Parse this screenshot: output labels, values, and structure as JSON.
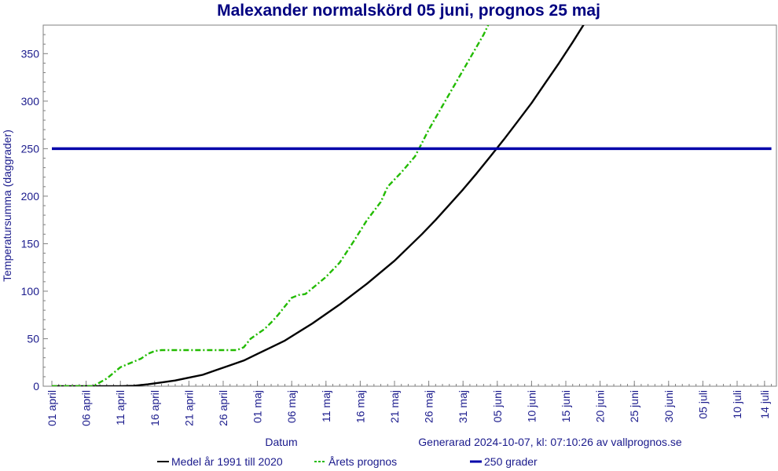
{
  "chart_data": {
    "type": "line",
    "title": "Malexander normalskörd 05 juni, prognos 25 maj",
    "xlabel": "Datum",
    "ylabel": "Temperatursumma (daggrader)",
    "generated_note": "Generarad 2024-10-07, kl: 07:10:26 av vallprognos.se",
    "ylim": [
      0,
      380
    ],
    "yticks": [
      0,
      50,
      100,
      150,
      200,
      250,
      300,
      350
    ],
    "x_range_days": [
      0,
      105
    ],
    "xticks": [
      {
        "day": 0,
        "label": "01 april"
      },
      {
        "day": 5,
        "label": "06 april"
      },
      {
        "day": 10,
        "label": "11 april"
      },
      {
        "day": 15,
        "label": "16 april"
      },
      {
        "day": 20,
        "label": "21 april"
      },
      {
        "day": 25,
        "label": "26 april"
      },
      {
        "day": 30,
        "label": "01 maj"
      },
      {
        "day": 35,
        "label": "06 maj"
      },
      {
        "day": 40,
        "label": "11 maj"
      },
      {
        "day": 45,
        "label": "16 maj"
      },
      {
        "day": 50,
        "label": "21 maj"
      },
      {
        "day": 55,
        "label": "26 maj"
      },
      {
        "day": 60,
        "label": "31 maj"
      },
      {
        "day": 65,
        "label": "05 juni"
      },
      {
        "day": 70,
        "label": "10 juni"
      },
      {
        "day": 75,
        "label": "15 juni"
      },
      {
        "day": 80,
        "label": "20 juni"
      },
      {
        "day": 85,
        "label": "25 juni"
      },
      {
        "day": 90,
        "label": "30 juni"
      },
      {
        "day": 95,
        "label": "05 juli"
      },
      {
        "day": 100,
        "label": "10 juli"
      },
      {
        "day": 104,
        "label": "14 juli"
      }
    ],
    "series": [
      {
        "name": "Medel år 1991 till 2020",
        "color": "#000000",
        "style": "solid",
        "points": [
          [
            0,
            0
          ],
          [
            5,
            0
          ],
          [
            10,
            0
          ],
          [
            12,
            0.5
          ],
          [
            14,
            2
          ],
          [
            16,
            4
          ],
          [
            18,
            6
          ],
          [
            20,
            9
          ],
          [
            22,
            12
          ],
          [
            24,
            17
          ],
          [
            26,
            22
          ],
          [
            28,
            27
          ],
          [
            30,
            34
          ],
          [
            32,
            41
          ],
          [
            34,
            48
          ],
          [
            36,
            57
          ],
          [
            38,
            66
          ],
          [
            40,
            76
          ],
          [
            42,
            86
          ],
          [
            44,
            97
          ],
          [
            46,
            108
          ],
          [
            48,
            120
          ],
          [
            50,
            132
          ],
          [
            52,
            146
          ],
          [
            54,
            160
          ],
          [
            56,
            175
          ],
          [
            58,
            191
          ],
          [
            60,
            207
          ],
          [
            62,
            224
          ],
          [
            64,
            242
          ],
          [
            66,
            260
          ],
          [
            68,
            279
          ],
          [
            70,
            298
          ],
          [
            72,
            319
          ],
          [
            74,
            340
          ],
          [
            76,
            362
          ],
          [
            78,
            385
          ]
        ]
      },
      {
        "name": "Årets prognos",
        "color": "#22bb00",
        "style": "dashdot",
        "points": [
          [
            0,
            0
          ],
          [
            6,
            0
          ],
          [
            8,
            8
          ],
          [
            10,
            20
          ],
          [
            12,
            26
          ],
          [
            13,
            29
          ],
          [
            14,
            34
          ],
          [
            15,
            37
          ],
          [
            16,
            38
          ],
          [
            20,
            38
          ],
          [
            24,
            38
          ],
          [
            27,
            38
          ],
          [
            28,
            41
          ],
          [
            29,
            50
          ],
          [
            30,
            55
          ],
          [
            31,
            60
          ],
          [
            32,
            67
          ],
          [
            33,
            75
          ],
          [
            34,
            84
          ],
          [
            35,
            93
          ],
          [
            36,
            96
          ],
          [
            37,
            97
          ],
          [
            38,
            103
          ],
          [
            40,
            115
          ],
          [
            42,
            130
          ],
          [
            44,
            152
          ],
          [
            46,
            175
          ],
          [
            48,
            194
          ],
          [
            49,
            210
          ],
          [
            51,
            225
          ],
          [
            53,
            242
          ],
          [
            55,
            270
          ],
          [
            57,
            295
          ],
          [
            59,
            320
          ],
          [
            61,
            345
          ],
          [
            63,
            370
          ],
          [
            64,
            385
          ]
        ]
      },
      {
        "name": "250 grader",
        "color": "#0000aa",
        "style": "solid-thick",
        "points": [
          [
            0,
            250
          ],
          [
            105,
            250
          ]
        ]
      }
    ],
    "legend_position": "bottom-center",
    "grid": false
  }
}
